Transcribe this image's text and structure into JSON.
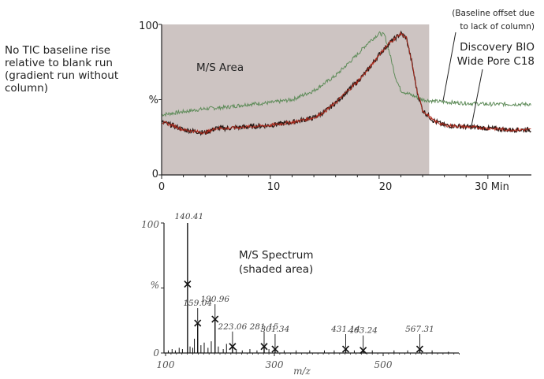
{
  "note_lines": [
    "No TIC baseline rise",
    "relative to blank run",
    "(gradient run without",
    "column)"
  ],
  "colors": {
    "shade": "#cdc4c2",
    "green_trace": "#5f8c5a",
    "red_trace": "#b22a1c",
    "dark_trace": "#2a1a16",
    "spectrum": "#111111"
  },
  "chart_data": [
    {
      "type": "line",
      "title": "",
      "shaded_label": "M/S Area",
      "xlabel": "Min",
      "ylabel": "%",
      "xlim": [
        0,
        34
      ],
      "ylim": [
        0,
        100
      ],
      "x_ticks": [
        0,
        10,
        20,
        30
      ],
      "x_tick_labels": [
        "0",
        "10",
        "20",
        "30 Min"
      ],
      "y_ticks": [
        0,
        50,
        100
      ],
      "y_tick_labels": [
        "0",
        "%",
        "100"
      ],
      "shaded_region": [
        0,
        24.6
      ],
      "annotations": {
        "baseline_note": [
          "(Baseline offset due",
          "to lack of column)"
        ],
        "column_label": [
          "Discovery BIO",
          "Wide Pore C18"
        ]
      },
      "series": [
        {
          "color": "green",
          "x": [
            0,
            2,
            4,
            6,
            8,
            10,
            12,
            14,
            16,
            18,
            19,
            20,
            20.5,
            21,
            21.5,
            22,
            23,
            24,
            25,
            27,
            30,
            34
          ],
          "y": [
            40,
            42,
            44,
            45,
            47,
            48,
            50,
            56,
            66,
            80,
            88,
            94,
            93,
            80,
            65,
            56,
            53,
            50,
            49,
            48,
            47,
            47
          ]
        },
        {
          "color": "red",
          "x": [
            0,
            1,
            2,
            3,
            4,
            5,
            6,
            8,
            10,
            12,
            14,
            15,
            16,
            17,
            18,
            19,
            20,
            21,
            22,
            22.5,
            23,
            23.5,
            24,
            25,
            26,
            28,
            30,
            32,
            34
          ],
          "y": [
            35,
            33,
            30,
            29,
            28,
            31,
            31,
            32,
            33,
            35,
            38,
            42,
            48,
            55,
            62,
            70,
            80,
            88,
            94,
            91,
            75,
            55,
            43,
            36,
            33,
            32,
            31,
            30,
            30
          ]
        }
      ]
    },
    {
      "type": "bar",
      "title": "M/S Spectrum",
      "subtitle": "(shaded area)",
      "xlabel": "m/z",
      "ylabel": "%",
      "xlim": [
        100,
        650
      ],
      "ylim": [
        0,
        100
      ],
      "x_ticks": [
        100,
        300,
        500
      ],
      "x_tick_labels": [
        "100",
        "300",
        "500"
      ],
      "y_ticks": [
        0,
        50,
        100
      ],
      "y_tick_labels": [
        "0",
        "%",
        "100"
      ],
      "peaks": [
        {
          "mz": 140.41,
          "value": 100,
          "label": "140.41"
        },
        {
          "mz": 159.04,
          "value": 23,
          "label": "159.04"
        },
        {
          "mz": 190.96,
          "value": 26,
          "label": "190.96"
        },
        {
          "mz": 223.06,
          "value": 5,
          "label": "223.06"
        },
        {
          "mz": 281.15,
          "value": 5,
          "label": "281.15"
        },
        {
          "mz": 301.34,
          "value": 3,
          "label": "301.34"
        },
        {
          "mz": 431.14,
          "value": 3,
          "label": "431.14"
        },
        {
          "mz": 463.24,
          "value": 2,
          "label": "463.24"
        },
        {
          "mz": 567.31,
          "value": 3,
          "label": "567.31"
        }
      ],
      "minor_peaks": [
        {
          "mz": 105,
          "value": 2
        },
        {
          "mz": 112,
          "value": 3
        },
        {
          "mz": 118,
          "value": 2
        },
        {
          "mz": 125,
          "value": 4
        },
        {
          "mz": 131,
          "value": 3
        },
        {
          "mz": 145,
          "value": 5
        },
        {
          "mz": 150,
          "value": 4
        },
        {
          "mz": 153,
          "value": 11
        },
        {
          "mz": 165,
          "value": 6
        },
        {
          "mz": 171,
          "value": 8
        },
        {
          "mz": 178,
          "value": 4
        },
        {
          "mz": 184,
          "value": 9
        },
        {
          "mz": 197,
          "value": 5
        },
        {
          "mz": 206,
          "value": 3
        },
        {
          "mz": 212,
          "value": 7
        },
        {
          "mz": 230,
          "value": 3
        },
        {
          "mz": 241,
          "value": 2
        },
        {
          "mz": 255,
          "value": 3
        },
        {
          "mz": 268,
          "value": 2
        },
        {
          "mz": 290,
          "value": 3
        },
        {
          "mz": 318,
          "value": 2
        },
        {
          "mz": 340,
          "value": 2
        },
        {
          "mz": 365,
          "value": 2
        },
        {
          "mz": 392,
          "value": 2
        },
        {
          "mz": 410,
          "value": 2
        },
        {
          "mz": 447,
          "value": 2
        },
        {
          "mz": 480,
          "value": 2
        },
        {
          "mz": 520,
          "value": 2
        },
        {
          "mz": 545,
          "value": 2
        },
        {
          "mz": 590,
          "value": 2
        },
        {
          "mz": 620,
          "value": 1
        }
      ]
    }
  ]
}
